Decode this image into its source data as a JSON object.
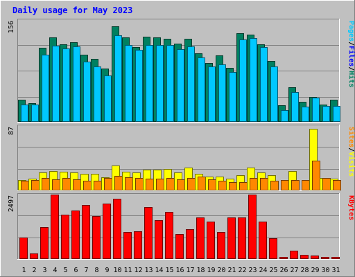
{
  "chart_data": [
    {
      "type": "bar",
      "title": "Daily usage for May 2023",
      "categories": [
        "1",
        "2",
        "3",
        "4",
        "5",
        "6",
        "7",
        "8",
        "9",
        "10",
        "11",
        "12",
        "13",
        "14",
        "15",
        "16",
        "17",
        "18",
        "19",
        "20",
        "21",
        "22",
        "23",
        "24",
        "25",
        "26",
        "27",
        "28",
        "29",
        "30",
        "31"
      ],
      "weekend_categories": [
        "6",
        "7",
        "13",
        "14",
        "20",
        "21",
        "27",
        "28"
      ],
      "ymax_label": "156",
      "ylim": [
        0,
        156
      ],
      "right_label": [
        "Pages",
        "Files",
        "Hits"
      ],
      "series": [
        {
          "name": "Hits",
          "color": "#008060",
          "values": [
            33,
            28,
            113,
            129,
            119,
            122,
            103,
            96,
            81,
            146,
            129,
            114,
            130,
            129,
            127,
            120,
            127,
            105,
            90,
            101,
            82,
            136,
            134,
            119,
            93,
            25,
            52,
            30,
            37,
            26,
            33
          ]
        },
        {
          "name": "Files",
          "color": "#00c8ff",
          "values": [
            26,
            26,
            103,
            116,
            112,
            115,
            92,
            84,
            71,
            132,
            118,
            110,
            118,
            118,
            117,
            111,
            115,
            98,
            84,
            88,
            76,
            126,
            128,
            114,
            84,
            17,
            45,
            22,
            36,
            24,
            24
          ]
        }
      ]
    },
    {
      "type": "bar",
      "categories": [
        "1",
        "2",
        "3",
        "4",
        "5",
        "6",
        "7",
        "8",
        "9",
        "10",
        "11",
        "12",
        "13",
        "14",
        "15",
        "16",
        "17",
        "18",
        "19",
        "20",
        "21",
        "22",
        "23",
        "24",
        "25",
        "26",
        "27",
        "28",
        "29",
        "30",
        "31"
      ],
      "ymax_label": "87",
      "ylim": [
        0,
        87
      ],
      "right_label": [
        "Sites",
        "Visits"
      ],
      "series": [
        {
          "name": "Visits",
          "color": "#ffff00",
          "values": [
            13,
            15,
            24,
            26,
            25,
            24,
            22,
            22,
            17,
            33,
            25,
            24,
            27,
            27,
            28,
            24,
            30,
            22,
            18,
            18,
            15,
            20,
            30,
            24,
            20,
            0,
            26,
            0,
            83,
            16,
            15
          ]
        },
        {
          "name": "Sites",
          "color": "#ff8800",
          "values": [
            12,
            13,
            16,
            14,
            16,
            14,
            12,
            12,
            16,
            19,
            17,
            16,
            15,
            15,
            16,
            14,
            16,
            18,
            14,
            12,
            10,
            10,
            16,
            16,
            12,
            13,
            13,
            13,
            40,
            16,
            13
          ]
        }
      ]
    },
    {
      "type": "bar",
      "categories": [
        "1",
        "2",
        "3",
        "4",
        "5",
        "6",
        "7",
        "8",
        "9",
        "10",
        "11",
        "12",
        "13",
        "14",
        "15",
        "16",
        "17",
        "18",
        "19",
        "20",
        "21",
        "22",
        "23",
        "24",
        "25",
        "26",
        "27",
        "28",
        "29",
        "30",
        "31"
      ],
      "ymax_label": "2497",
      "ylim": [
        0,
        2497
      ],
      "right_label": [
        "KBytes"
      ],
      "series": [
        {
          "name": "KBytes",
          "color": "#ff0000",
          "values": [
            820,
            200,
            1230,
            2497,
            1720,
            1860,
            2100,
            1660,
            2140,
            2340,
            1040,
            1060,
            2020,
            1480,
            1830,
            960,
            1150,
            1590,
            1430,
            1030,
            1590,
            1590,
            2497,
            1440,
            790,
            60,
            300,
            140,
            100,
            60,
            60
          ]
        }
      ]
    }
  ]
}
